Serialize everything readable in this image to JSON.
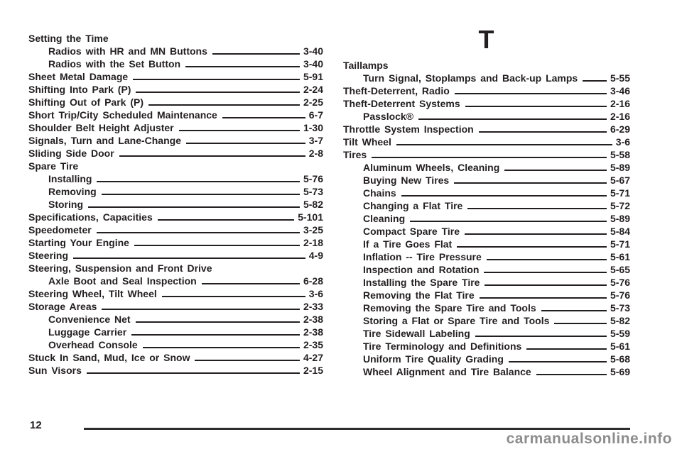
{
  "page": {
    "number": "12",
    "watermark": "carmanualsonline.info"
  },
  "colors": {
    "ink": "#231f20",
    "watermark_gray": "#8d8d8d",
    "footer_rule": "#2f2c2d"
  },
  "index": {
    "left_column": {
      "entries": [
        {
          "label": "Setting the Time",
          "page": "",
          "indent": 0
        },
        {
          "label": "Radios with HR and MN Buttons",
          "page": "3-40",
          "indent": 1
        },
        {
          "label": "Radios with the Set Button",
          "page": "3-40",
          "indent": 1
        },
        {
          "label": "Sheet Metal Damage",
          "page": "5-91",
          "indent": 0
        },
        {
          "label": "Shifting Into Park (P)",
          "page": "2-24",
          "indent": 0
        },
        {
          "label": "Shifting Out of Park (P)",
          "page": "2-25",
          "indent": 0
        },
        {
          "label": "Short Trip/City Scheduled Maintenance",
          "page": "6-7",
          "indent": 0
        },
        {
          "label": "Shoulder Belt Height Adjuster",
          "page": "1-30",
          "indent": 0
        },
        {
          "label": "Signals, Turn and Lane-Change",
          "page": "3-7",
          "indent": 0
        },
        {
          "label": "Sliding Side Door",
          "page": "2-8",
          "indent": 0
        },
        {
          "label": "Spare Tire",
          "page": "",
          "indent": 0
        },
        {
          "label": "Installing",
          "page": "5-76",
          "indent": 1
        },
        {
          "label": "Removing",
          "page": "5-73",
          "indent": 1
        },
        {
          "label": "Storing",
          "page": "5-82",
          "indent": 1
        },
        {
          "label": "Specifications, Capacities",
          "page": "5-101",
          "indent": 0
        },
        {
          "label": "Speedometer",
          "page": "3-25",
          "indent": 0
        },
        {
          "label": "Starting Your Engine",
          "page": "2-18",
          "indent": 0
        },
        {
          "label": "Steering",
          "page": "4-9",
          "indent": 0
        },
        {
          "label": "Steering, Suspension and Front Drive",
          "page": "",
          "indent": 0
        },
        {
          "label": "Axle Boot and Seal Inspection",
          "page": "6-28",
          "indent": 1
        },
        {
          "label": "Steering Wheel, Tilt Wheel",
          "page": "3-6",
          "indent": 0
        },
        {
          "label": "Storage Areas",
          "page": "2-33",
          "indent": 0
        },
        {
          "label": "Convenience Net",
          "page": "2-38",
          "indent": 1
        },
        {
          "label": "Luggage Carrier",
          "page": "2-38",
          "indent": 1
        },
        {
          "label": "Overhead Console",
          "page": "2-35",
          "indent": 1
        },
        {
          "label": "Stuck In Sand, Mud, Ice or Snow",
          "page": "4-27",
          "indent": 0
        },
        {
          "label": "Sun Visors",
          "page": "2-15",
          "indent": 0
        }
      ]
    },
    "right_column": {
      "section_letter": "T",
      "entries": [
        {
          "label": "Taillamps",
          "page": "",
          "indent": 0
        },
        {
          "label": "Turn Signal, Stoplamps and Back-up Lamps",
          "page": "5-55",
          "indent": 1
        },
        {
          "label": "Theft-Deterrent, Radio",
          "page": "3-46",
          "indent": 0
        },
        {
          "label": "Theft-Deterrent Systems",
          "page": "2-16",
          "indent": 0
        },
        {
          "label": "Passlock®",
          "page": "2-16",
          "indent": 1
        },
        {
          "label": "Throttle System Inspection",
          "page": "6-29",
          "indent": 0
        },
        {
          "label": "Tilt Wheel",
          "page": "3-6",
          "indent": 0
        },
        {
          "label": "Tires",
          "page": "5-58",
          "indent": 0
        },
        {
          "label": "Aluminum Wheels, Cleaning",
          "page": "5-89",
          "indent": 1
        },
        {
          "label": "Buying New Tires",
          "page": "5-67",
          "indent": 1
        },
        {
          "label": "Chains",
          "page": "5-71",
          "indent": 1
        },
        {
          "label": "Changing a Flat Tire",
          "page": "5-72",
          "indent": 1
        },
        {
          "label": "Cleaning",
          "page": "5-89",
          "indent": 1
        },
        {
          "label": "Compact Spare Tire",
          "page": "5-84",
          "indent": 1
        },
        {
          "label": "If a Tire Goes Flat",
          "page": "5-71",
          "indent": 1
        },
        {
          "label": "Inflation -- Tire Pressure",
          "page": "5-61",
          "indent": 1
        },
        {
          "label": "Inspection and Rotation",
          "page": "5-65",
          "indent": 1
        },
        {
          "label": "Installing the Spare Tire",
          "page": "5-76",
          "indent": 1
        },
        {
          "label": "Removing the Flat Tire",
          "page": "5-76",
          "indent": 1
        },
        {
          "label": "Removing the Spare Tire and Tools",
          "page": "5-73",
          "indent": 1
        },
        {
          "label": "Storing a Flat or Spare Tire and Tools",
          "page": "5-82",
          "indent": 1
        },
        {
          "label": "Tire Sidewall Labeling",
          "page": "5-59",
          "indent": 1
        },
        {
          "label": "Tire Terminology and Definitions",
          "page": "5-61",
          "indent": 1
        },
        {
          "label": "Uniform Tire Quality Grading",
          "page": "5-68",
          "indent": 1
        },
        {
          "label": "Wheel Alignment and Tire Balance",
          "page": "5-69",
          "indent": 1
        }
      ]
    }
  }
}
